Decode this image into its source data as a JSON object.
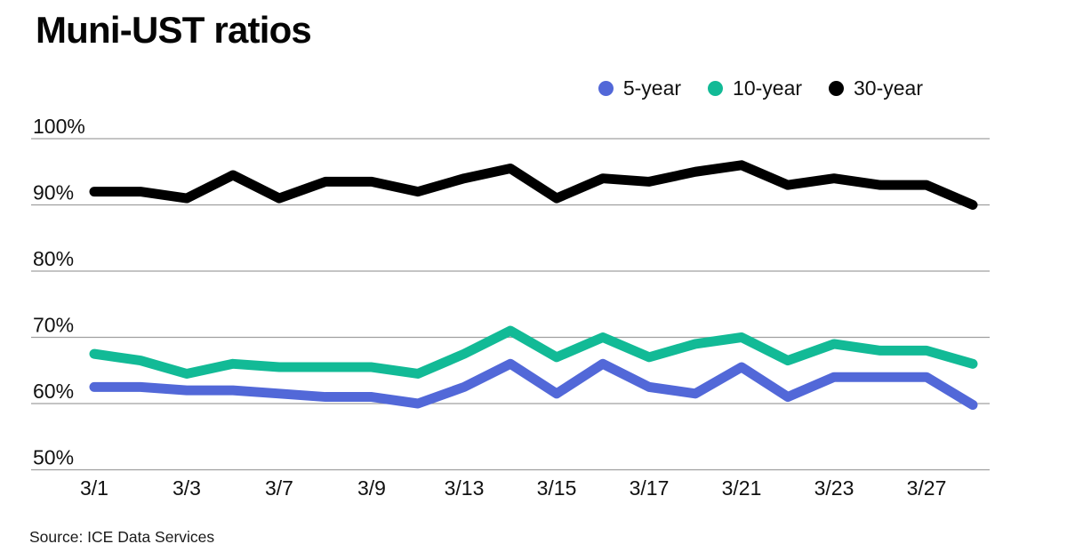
{
  "chart_data": {
    "type": "line",
    "title": "Muni-UST ratios",
    "x": [
      "3/1",
      "3/2",
      "3/3",
      "3/6",
      "3/7",
      "3/8",
      "3/9",
      "3/10",
      "3/13",
      "3/14",
      "3/15",
      "3/16",
      "3/17",
      "3/20",
      "3/21",
      "3/22",
      "3/23",
      "3/24",
      "3/27",
      "3/28"
    ],
    "x_tick_labels": [
      "3/1",
      "3/3",
      "3/7",
      "3/9",
      "3/13",
      "3/15",
      "3/17",
      "3/21",
      "3/23",
      "3/27"
    ],
    "y_axis": {
      "min": 50,
      "max": 100,
      "tick_step": 10,
      "tick_labels": [
        "100%",
        "90%",
        "80%",
        "70%",
        "60%",
        "50%"
      ],
      "unit": "%"
    },
    "grid": true,
    "legend_position": "top-right",
    "series": [
      {
        "name": "5-year",
        "color": "#5268D8",
        "values": [
          62.5,
          62.5,
          62,
          62,
          61.5,
          61,
          61,
          60,
          62.5,
          66,
          61.5,
          66,
          62.5,
          61.5,
          65.5,
          61,
          64,
          64,
          64,
          59.8
        ]
      },
      {
        "name": "10-year",
        "color": "#12BA96",
        "values": [
          67.5,
          66.5,
          64.5,
          66,
          65.5,
          65.5,
          65.5,
          64.5,
          67.5,
          71,
          67,
          70,
          67,
          69,
          70,
          66.5,
          69,
          68,
          68,
          66
        ]
      },
      {
        "name": "30-year",
        "color": "#000000",
        "values": [
          92,
          92,
          91,
          94.5,
          91,
          93.5,
          93.5,
          92,
          94,
          95.5,
          91,
          94,
          93.5,
          95,
          96,
          93,
          94,
          93,
          93,
          90
        ]
      }
    ],
    "source": "Source: ICE Data Services"
  }
}
